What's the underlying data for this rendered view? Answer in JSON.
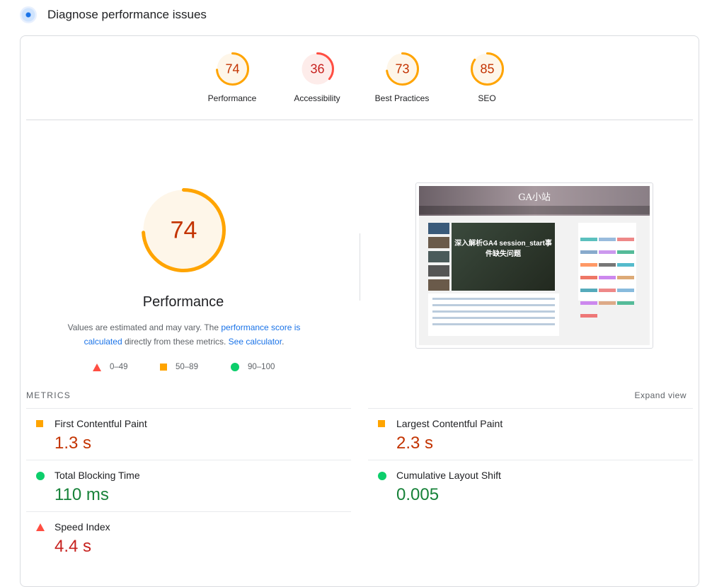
{
  "header": {
    "title": "Diagnose performance issues",
    "icon": "pagespeed-gauge-icon"
  },
  "colors": {
    "fail": "#ff4e42",
    "average": "#ffa400",
    "pass": "#0cce6b",
    "fail_text": "#c7221f",
    "average_text": "#c33300",
    "pass_text": "#178239"
  },
  "categories": [
    {
      "label": "Performance",
      "score": 74,
      "rating": "average"
    },
    {
      "label": "Accessibility",
      "score": 36,
      "rating": "fail"
    },
    {
      "label": "Best Practices",
      "score": 73,
      "rating": "average"
    },
    {
      "label": "SEO",
      "score": 85,
      "rating": "average"
    }
  ],
  "main_gauge": {
    "score": 74,
    "label": "Performance"
  },
  "description": {
    "text1": "Values are estimated and may vary. The ",
    "link1": "performance score is calculated",
    "text2": " directly from these metrics. ",
    "link2": "See calculator",
    "text3": "."
  },
  "legend": [
    {
      "range": "0–49",
      "shape": "triangle"
    },
    {
      "range": "50–89",
      "shape": "square"
    },
    {
      "range": "90–100",
      "shape": "circle"
    }
  ],
  "screenshot": {
    "site_title": "GA小站",
    "headline": "深入解析GA4 session_start事件缺失问题"
  },
  "metrics": {
    "title": "METRICS",
    "expand_label": "Expand view",
    "items": [
      {
        "name": "First Contentful Paint",
        "value": "1.3 s",
        "rating": "average"
      },
      {
        "name": "Largest Contentful Paint",
        "value": "2.3 s",
        "rating": "average"
      },
      {
        "name": "Total Blocking Time",
        "value": "110 ms",
        "rating": "pass"
      },
      {
        "name": "Cumulative Layout Shift",
        "value": "0.005",
        "rating": "pass"
      },
      {
        "name": "Speed Index",
        "value": "4.4 s",
        "rating": "fail"
      }
    ]
  }
}
